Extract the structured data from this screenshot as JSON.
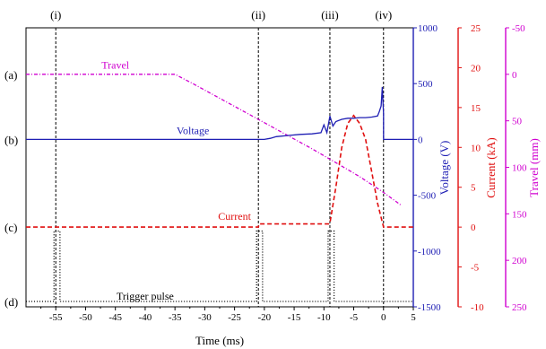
{
  "chart_data": {
    "type": "line",
    "x_axis": {
      "label": "Time (ms)",
      "range": [
        -60,
        5
      ],
      "ticks": [
        -55,
        -50,
        -45,
        -40,
        -35,
        -30,
        -25,
        -20,
        -15,
        -10,
        -5,
        0,
        5
      ],
      "tick_labels": [
        "-55",
        "-50",
        "-45",
        "-40",
        "-35",
        "-30",
        "-25",
        "-20",
        "-15",
        "-10",
        "-5",
        "0",
        "5"
      ]
    },
    "axes": [
      {
        "id": "voltage",
        "label": "Voltage (V)",
        "color": "#1f1fb4",
        "range": [
          -1500,
          1000
        ],
        "ticks": [
          1000,
          500,
          0,
          -500,
          -1000,
          -1500
        ],
        "tick_labels": [
          "1000",
          "500",
          "0",
          "-500",
          "-1000",
          "-1500"
        ]
      },
      {
        "id": "current",
        "label": "Current (kA)",
        "color": "#e01010",
        "range": [
          -10,
          25
        ],
        "ticks": [
          25,
          20,
          15,
          10,
          5,
          0,
          -5,
          -10
        ],
        "tick_labels": [
          "25",
          "20",
          "15",
          "10",
          "5",
          "0",
          "-5",
          "-10"
        ]
      },
      {
        "id": "travel",
        "label": "Travel (mm)",
        "color": "#d000d0",
        "range": [
          250,
          -50
        ],
        "inverted": true,
        "ticks": [
          -50,
          0,
          50,
          100,
          150,
          200,
          250
        ],
        "tick_labels": [
          "-50",
          "0",
          "50",
          "100",
          "150",
          "200",
          "250"
        ]
      }
    ],
    "row_labels": [
      "(a)",
      "(b)",
      "(c)",
      "(d)"
    ],
    "event_labels": [
      "(i)",
      "(ii)",
      "(iii)",
      "(iv)"
    ],
    "events_x": [
      -55,
      -21,
      -9,
      0
    ],
    "series": [
      {
        "name": "Travel",
        "axis": "travel",
        "color": "#d000d0",
        "style": "dash-dot",
        "x": [
          -60,
          -35,
          -32,
          -28,
          -24,
          -20,
          -16,
          -12,
          -8,
          -4,
          0,
          3
        ],
        "y": [
          0,
          0,
          10,
          24,
          38,
          52,
          66,
          80,
          95,
          110,
          127,
          141
        ]
      },
      {
        "name": "Voltage",
        "axis": "voltage",
        "color": "#1f1fb4",
        "style": "solid",
        "x": [
          -60,
          -20,
          -19,
          -18,
          -16,
          -14,
          -12,
          -10.5,
          -10,
          -9.5,
          -9,
          -8.5,
          -8,
          -7,
          -6,
          -5,
          -4,
          -3,
          -2,
          -1,
          -0.7,
          -0.4,
          -0.2,
          0,
          0.01,
          5
        ],
        "y": [
          0,
          0,
          10,
          25,
          35,
          45,
          50,
          60,
          130,
          60,
          210,
          120,
          160,
          180,
          190,
          190,
          195,
          195,
          200,
          210,
          250,
          300,
          470,
          230,
          0,
          0
        ]
      },
      {
        "name": "Current",
        "axis": "current",
        "color": "#e01010",
        "style": "dash",
        "x": [
          -60,
          -21,
          -20.9,
          -9.2,
          -9,
          -8,
          -7,
          -6,
          -5,
          -4,
          -3,
          -2,
          -1,
          0,
          5
        ],
        "y": [
          0,
          0,
          0.4,
          0.4,
          0.5,
          5,
          10,
          13,
          14,
          13,
          11,
          7,
          3,
          0,
          0
        ]
      },
      {
        "name": "Trigger pulse",
        "axis": "trigger",
        "color": "#000000",
        "style": "dot",
        "pulses": [
          [
            -55.3,
            -54.3
          ],
          [
            -21.3,
            -20.3
          ],
          [
            -9.3,
            -8.3
          ]
        ]
      }
    ],
    "trigger_levels": {
      "low": 0,
      "high": 1
    }
  }
}
